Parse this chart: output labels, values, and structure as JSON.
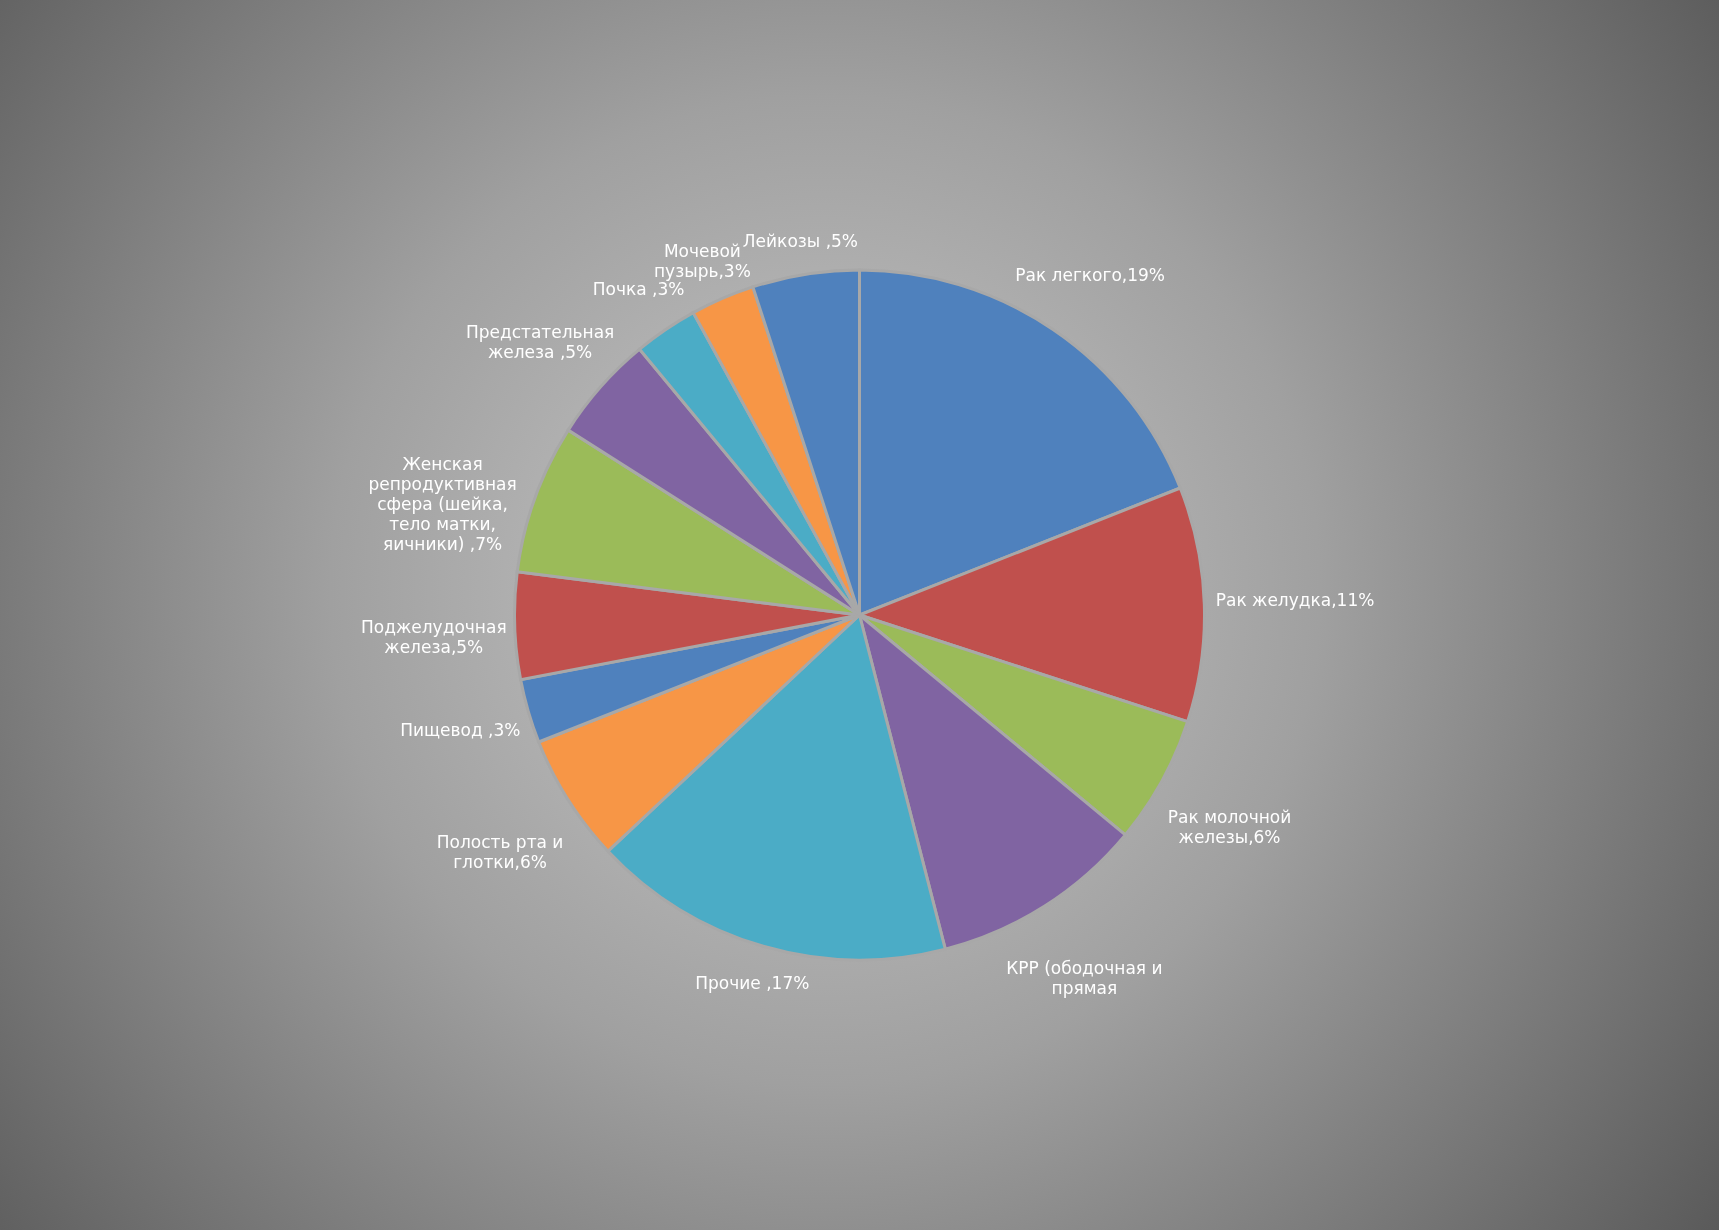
{
  "chart_data": {
    "type": "pie",
    "categories": [
      "Рак легкого,19%",
      "Рак желудка,11%",
      "Рак молочной железы,6%",
      "КРР (ободочная и прямая",
      "Прочие ,17%",
      "Полость рта и глотки,6%",
      "Пищевод ,3%",
      "Поджелудочная железа,5%",
      "Женская репродуктивная сфера (шейка, тело матки, яичники) ,7%",
      "Предстательная железа ,5%",
      "Почка ,3%",
      "Мочевой пузырь,3%",
      "Лейкозы ,5%"
    ],
    "values": [
      19,
      11,
      6,
      10,
      17,
      6,
      3,
      5,
      7,
      5,
      3,
      3,
      5
    ],
    "colors": [
      "#4f81bd",
      "#c0504d",
      "#9bbb59",
      "#8064a2",
      "#4bacc6",
      "#f79646",
      "#4f81bd",
      "#c0504d",
      "#9bbb59",
      "#8064a2",
      "#4bacc6",
      "#f79646",
      "#4f81bd"
    ]
  }
}
